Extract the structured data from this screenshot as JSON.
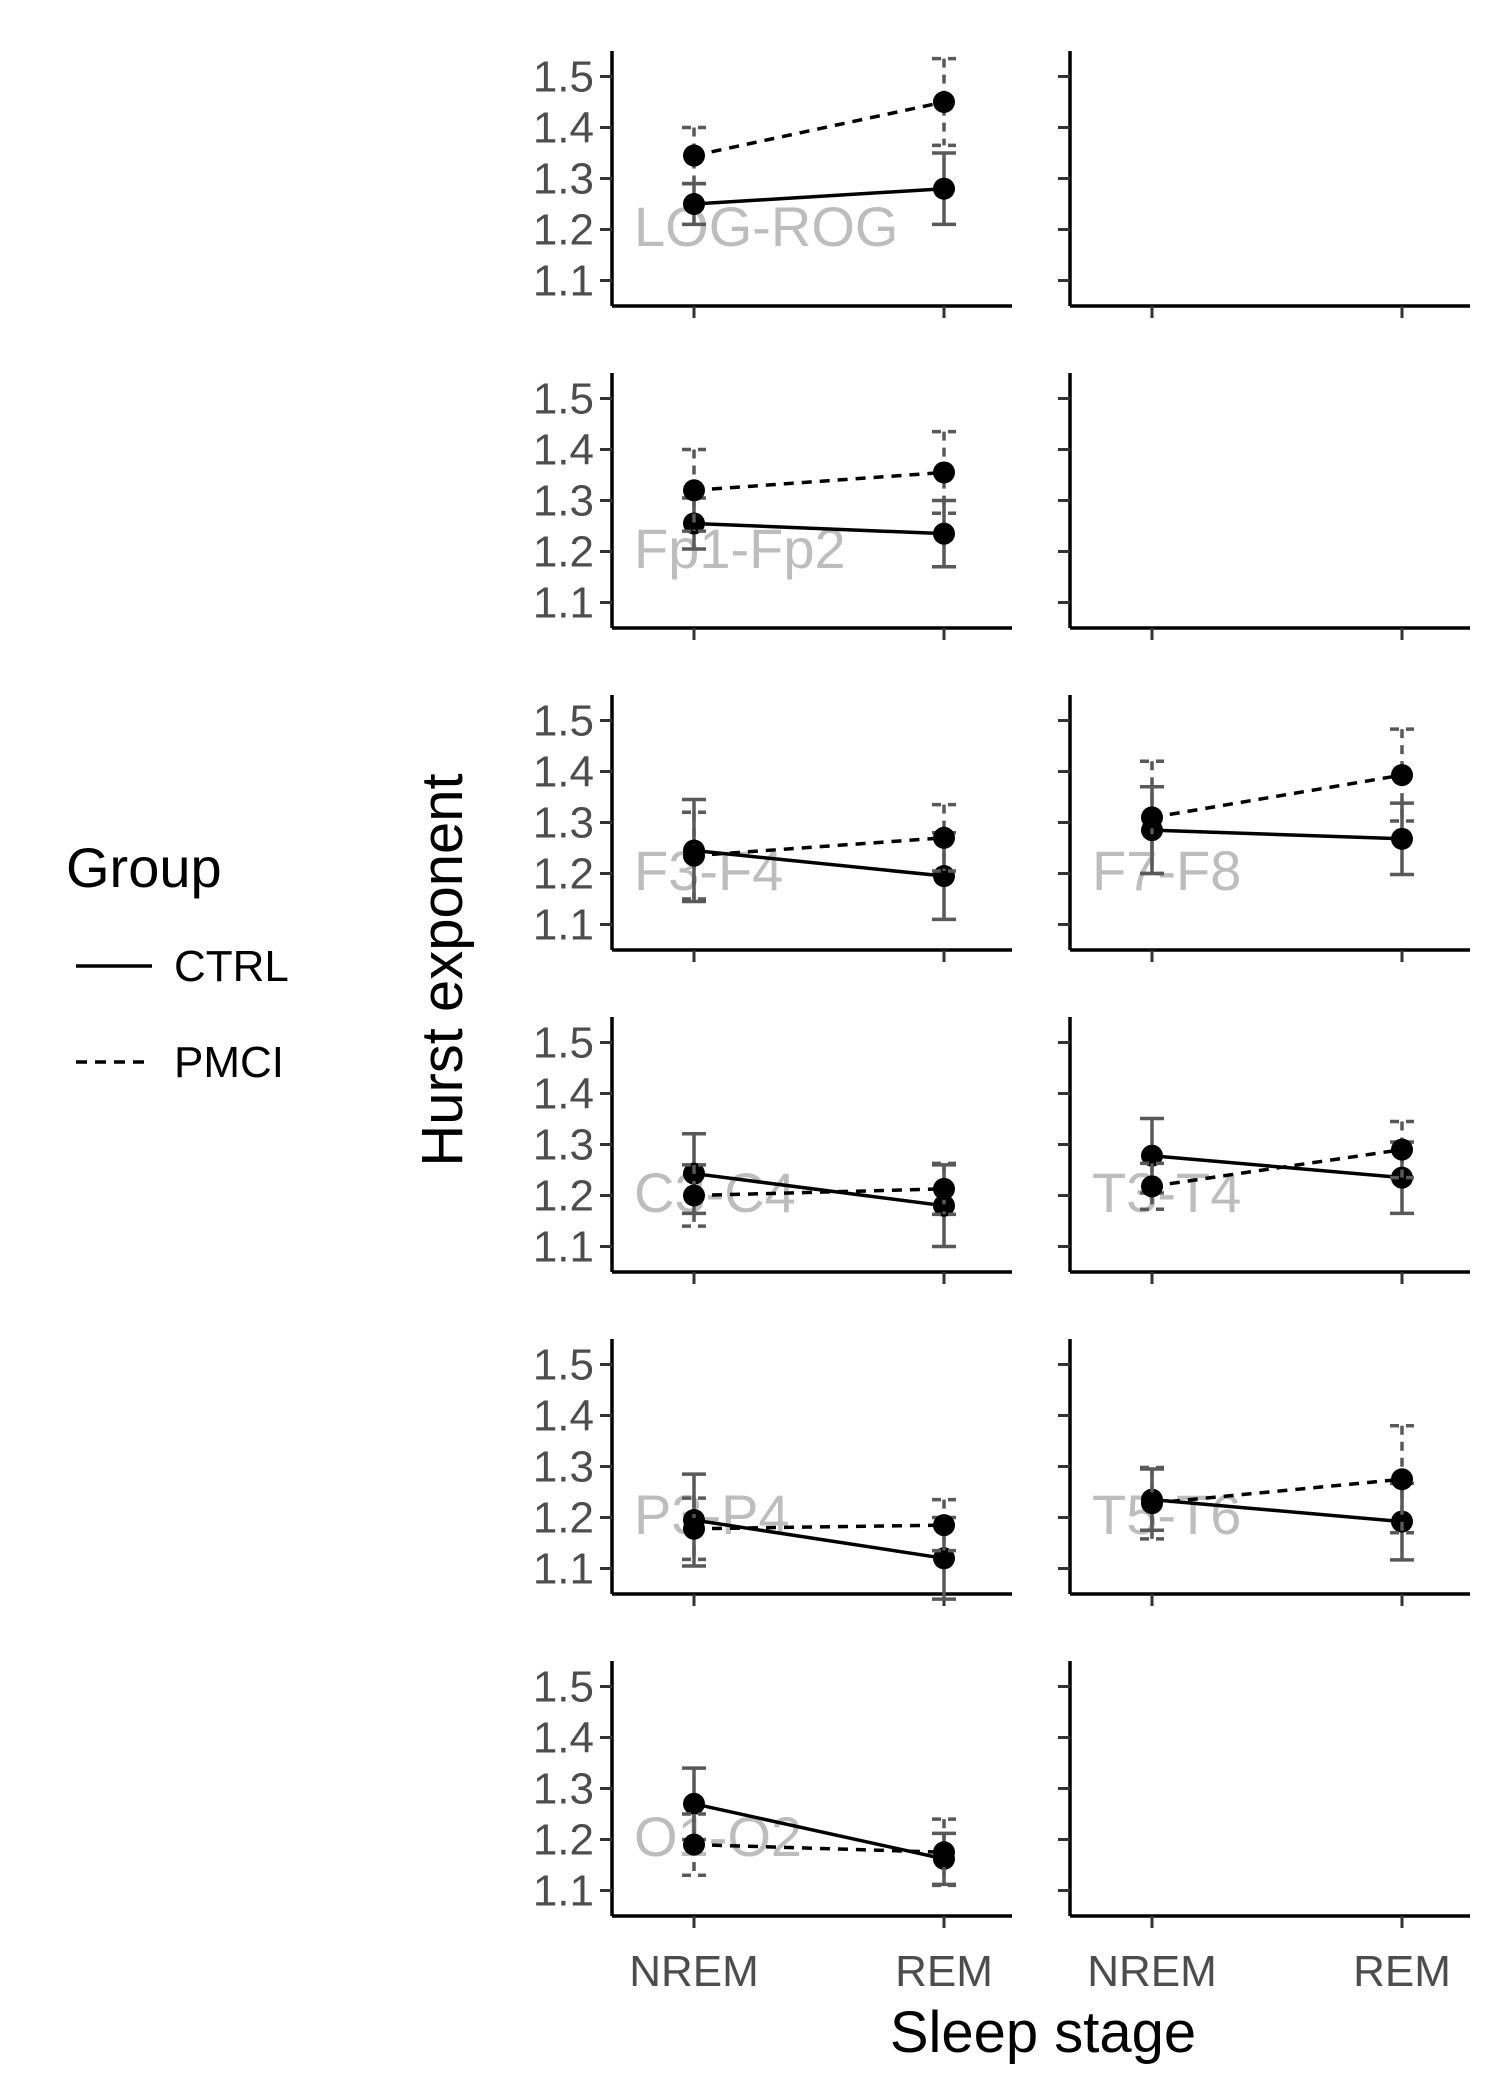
{
  "chart_data": {
    "type": "line",
    "xlabel": "Sleep stage",
    "ylabel": "Hurst exponent",
    "categories": [
      "NREM",
      "REM"
    ],
    "ylim": [
      1.05,
      1.55
    ],
    "yticks": [
      1.1,
      1.2,
      1.3,
      1.4,
      1.5
    ],
    "ytick_labels": [
      "1.1",
      "1.2",
      "1.3",
      "1.4",
      "1.5"
    ],
    "grid": false,
    "legend": {
      "title": "Group",
      "placement": "left",
      "entries": [
        {
          "label": "CTRL",
          "style": "solid"
        },
        {
          "label": "PMCI",
          "style": "dashed"
        }
      ]
    },
    "colors": {
      "points": "#000000",
      "errorbars": "#595959",
      "panel_label": "#bdbdbd"
    },
    "panels": [
      {
        "label": "LOG-ROG",
        "col": 0,
        "row": 0,
        "series": [
          {
            "group": "CTRL",
            "values": [
              1.25,
              1.28
            ],
            "errors": [
              0.04,
              0.07
            ]
          },
          {
            "group": "PMCI",
            "values": [
              1.345,
              1.45
            ],
            "errors": [
              0.055,
              0.085
            ]
          }
        ]
      },
      {
        "label": "",
        "col": 1,
        "row": 0,
        "series": []
      },
      {
        "label": "Fp1-Fp2",
        "col": 0,
        "row": 1,
        "series": [
          {
            "group": "CTRL",
            "values": [
              1.255,
              1.235
            ],
            "errors": [
              0.05,
              0.065
            ]
          },
          {
            "group": "PMCI",
            "values": [
              1.32,
              1.355
            ],
            "errors": [
              0.08,
              0.08
            ]
          }
        ]
      },
      {
        "label": "",
        "col": 1,
        "row": 1,
        "series": []
      },
      {
        "label": "F3-F4",
        "col": 0,
        "row": 2,
        "series": [
          {
            "group": "CTRL",
            "values": [
              1.245,
              1.195
            ],
            "errors": [
              0.1,
              0.085
            ]
          },
          {
            "group": "PMCI",
            "values": [
              1.235,
              1.27
            ],
            "errors": [
              0.085,
              0.065
            ]
          }
        ]
      },
      {
        "label": "F7-F8",
        "col": 1,
        "row": 2,
        "series": [
          {
            "group": "CTRL",
            "values": [
              1.285,
              1.268
            ],
            "errors": [
              0.085,
              0.07
            ]
          },
          {
            "group": "PMCI",
            "values": [
              1.31,
              1.393
            ],
            "errors": [
              0.11,
              0.09
            ]
          }
        ]
      },
      {
        "label": "C3-C4",
        "col": 0,
        "row": 3,
        "series": [
          {
            "group": "CTRL",
            "values": [
              1.243,
              1.18
            ],
            "errors": [
              0.078,
              0.08
            ]
          },
          {
            "group": "PMCI",
            "values": [
              1.2,
              1.213
            ],
            "errors": [
              0.06,
              0.05
            ]
          }
        ]
      },
      {
        "label": "T3-T4",
        "col": 1,
        "row": 3,
        "series": [
          {
            "group": "CTRL",
            "values": [
              1.278,
              1.235
            ],
            "errors": [
              0.073,
              0.07
            ]
          },
          {
            "group": "PMCI",
            "values": [
              1.218,
              1.29
            ],
            "errors": [
              0.045,
              0.055
            ]
          }
        ]
      },
      {
        "label": "P3-P4",
        "col": 0,
        "row": 4,
        "series": [
          {
            "group": "CTRL",
            "values": [
              1.195,
              1.12
            ],
            "errors": [
              0.09,
              0.08
            ]
          },
          {
            "group": "PMCI",
            "values": [
              1.178,
              1.185
            ],
            "errors": [
              0.06,
              0.05
            ]
          }
        ]
      },
      {
        "label": "T5-T6",
        "col": 1,
        "row": 4,
        "series": [
          {
            "group": "CTRL",
            "values": [
              1.235,
              1.192
            ],
            "errors": [
              0.06,
              0.075
            ]
          },
          {
            "group": "PMCI",
            "values": [
              1.228,
              1.275
            ],
            "errors": [
              0.07,
              0.105
            ]
          }
        ]
      },
      {
        "label": "O1-O2",
        "col": 0,
        "row": 5,
        "series": [
          {
            "group": "CTRL",
            "values": [
              1.27,
              1.162
            ],
            "errors": [
              0.07,
              0.05
            ]
          },
          {
            "group": "PMCI",
            "values": [
              1.19,
              1.175
            ],
            "errors": [
              0.06,
              0.065
            ]
          }
        ]
      },
      {
        "label": "",
        "col": 1,
        "row": 5,
        "series": []
      }
    ]
  }
}
